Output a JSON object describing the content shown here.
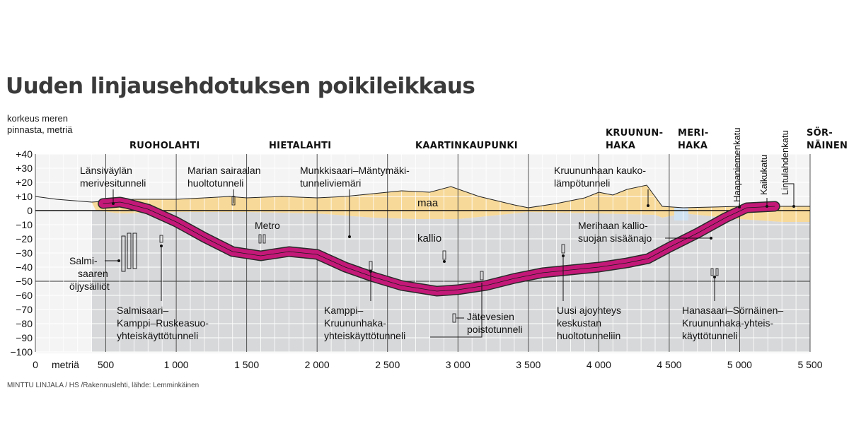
{
  "title": "Uuden linjausehdotuksen poikileikkaus",
  "y_axis_title": [
    "korkeus meren",
    "pinnasta, metriä"
  ],
  "x_axis_unit": "metriä",
  "x_ticks": [
    "0",
    "500",
    "1 000",
    "1 500",
    "2 000",
    "2 500",
    "3 000",
    "3 500",
    "4 000",
    "4 500",
    "5 000",
    "5 500"
  ],
  "y_ticks": [
    "+40",
    "+30",
    "+20",
    "+10",
    "0",
    "−10",
    "−20",
    "−30",
    "−40",
    "−50",
    "−60",
    "−70",
    "−80",
    "−90",
    "−100"
  ],
  "districts": {
    "ruoholahti": "RUOHOLAHTI",
    "hietalahti": "HIETALAHTI",
    "kaartinkaupunki": "KAARTINKAUPUNKI",
    "kruununhaka": [
      "KRUUNUN-",
      "HAKA"
    ],
    "merihaka": [
      "MERI-",
      "HAKA"
    ],
    "sornainen": [
      "SÖR-",
      "NÄINEN"
    ]
  },
  "layers": {
    "soil": "maa",
    "rock": "kallio"
  },
  "labels": {
    "lansivaylan": [
      "Länsiväylän",
      "merivesitunneli"
    ],
    "marian": [
      "Marian sairaalan",
      "huoltotunneli"
    ],
    "munkkisaari": [
      "Munkkisaari–Mäntymäki-",
      "tunneliviemäri"
    ],
    "kruununhaan_kauko": [
      "Kruununhaan kauko-",
      "lämpötunneli"
    ],
    "haapaniemenkatu": "Haapaniemenkatu",
    "kaikukatu": "Kaikukatu",
    "lintulahdenkatu": "Lintulahdenkatu",
    "metro": "Metro",
    "merihaan_kallio": [
      "Merihaan kallio-",
      "suojan sisäänajo"
    ],
    "salmisaaren": [
      "Salmi-",
      "saaren",
      "öljysäiliöt"
    ],
    "salmisaari_kamppi": [
      "Salmisaari–",
      "Kamppi–Ruskeasuo-",
      "yhteiskäyttötunneli"
    ],
    "kamppi_kruununhaka": [
      "Kamppi–",
      "Kruununhaka-",
      "yhteiskäyttötunneli"
    ],
    "jatevesien": [
      "Jätevesien",
      "poistotunneli"
    ],
    "uusi_ajoyhteys": [
      "Uusi ajoyhteys",
      "keskustan",
      "huoltotunneliin"
    ],
    "hanasaari": [
      "Hanasaari–Sörnäinen–",
      "Kruununhaka-yhteis-",
      "käyttötunneli"
    ]
  },
  "credit": "MINTTU LINJALA / HS /Rakennuslehti, lähde: Lemminkäinen",
  "chart_data": {
    "type": "area",
    "xlabel": "metriä",
    "ylabel": "korkeus meren pinnasta, metriä",
    "xlim": [
      0,
      5500
    ],
    "ylim": [
      -100,
      40
    ],
    "tunnel_centerline": [
      [
        480,
        5
      ],
      [
        600,
        6
      ],
      [
        650,
        5
      ],
      [
        800,
        1
      ],
      [
        1000,
        -8
      ],
      [
        1200,
        -19
      ],
      [
        1400,
        -29
      ],
      [
        1600,
        -32
      ],
      [
        1800,
        -29
      ],
      [
        2000,
        -31
      ],
      [
        2200,
        -40
      ],
      [
        2400,
        -47
      ],
      [
        2600,
        -53
      ],
      [
        2850,
        -57
      ],
      [
        3000,
        -56
      ],
      [
        3200,
        -53
      ],
      [
        3400,
        -48
      ],
      [
        3600,
        -44
      ],
      [
        3800,
        -42
      ],
      [
        4000,
        -40
      ],
      [
        4200,
        -37
      ],
      [
        4350,
        -34
      ],
      [
        4500,
        -26
      ],
      [
        4700,
        -16
      ],
      [
        4900,
        -5
      ],
      [
        5050,
        2
      ],
      [
        5250,
        3
      ]
    ],
    "ground_surface": [
      [
        0,
        10
      ],
      [
        150,
        8
      ],
      [
        400,
        6
      ],
      [
        700,
        8
      ],
      [
        1000,
        8
      ],
      [
        1200,
        9
      ],
      [
        1380,
        10
      ],
      [
        1500,
        9
      ],
      [
        1750,
        10
      ],
      [
        2000,
        9
      ],
      [
        2200,
        10
      ],
      [
        2400,
        12
      ],
      [
        2600,
        14
      ],
      [
        2800,
        13
      ],
      [
        2950,
        17
      ],
      [
        3150,
        10
      ],
      [
        3400,
        4
      ],
      [
        3500,
        2
      ],
      [
        3700,
        5
      ],
      [
        3900,
        9
      ],
      [
        4000,
        13
      ],
      [
        4100,
        11
      ],
      [
        4200,
        15
      ],
      [
        4340,
        18
      ],
      [
        4450,
        3
      ],
      [
        4600,
        2
      ],
      [
        5000,
        3
      ],
      [
        5300,
        3
      ],
      [
        5500,
        3
      ]
    ],
    "soil_bottom": [
      [
        430,
        0
      ],
      [
        600,
        -2
      ],
      [
        1000,
        -1
      ],
      [
        1500,
        -1
      ],
      [
        2000,
        -2
      ],
      [
        2400,
        -5
      ],
      [
        2700,
        -6
      ],
      [
        3000,
        -6
      ],
      [
        3300,
        -3
      ],
      [
        3500,
        -1
      ],
      [
        4000,
        -2
      ],
      [
        4400,
        -3
      ],
      [
        4450,
        -5
      ],
      [
        4600,
        -2
      ],
      [
        5000,
        -6
      ],
      [
        5300,
        -8
      ],
      [
        5500,
        -8
      ]
    ]
  }
}
